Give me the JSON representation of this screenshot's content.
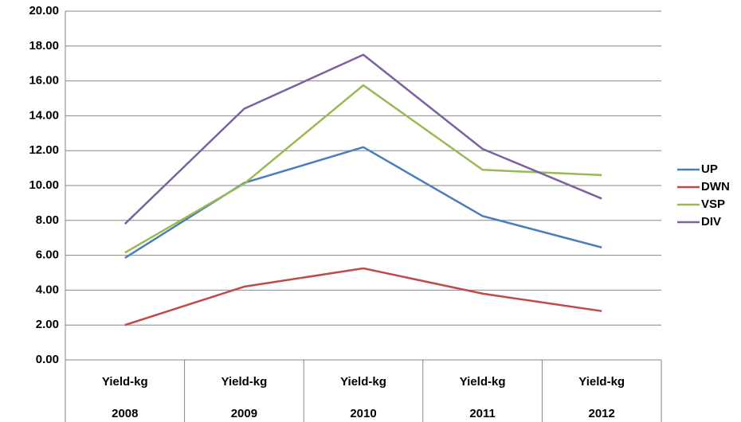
{
  "chart_data": {
    "type": "line",
    "categories": [
      [
        "Yield-kg",
        "2008"
      ],
      [
        "Yield-kg",
        "2009"
      ],
      [
        "Yield-kg",
        "2010"
      ],
      [
        "Yield-kg",
        "2011"
      ],
      [
        "Yield-kg",
        "2012"
      ]
    ],
    "series": [
      {
        "name": "UP",
        "color": "#4a7ebb",
        "values": [
          5.85,
          10.15,
          12.2,
          8.25,
          6.45
        ]
      },
      {
        "name": "DWN",
        "color": "#be4b48",
        "values": [
          2.0,
          4.2,
          5.25,
          3.8,
          2.8
        ]
      },
      {
        "name": "VSP",
        "color": "#98b954",
        "values": [
          6.15,
          10.1,
          15.75,
          10.9,
          10.6
        ]
      },
      {
        "name": "DIV",
        "color": "#7d60a0",
        "values": [
          7.8,
          14.4,
          17.5,
          12.1,
          9.25
        ]
      }
    ],
    "ylim": [
      0,
      20
    ],
    "yticks": [
      {
        "value": 0,
        "label": "0.00"
      },
      {
        "value": 2,
        "label": "2.00"
      },
      {
        "value": 4,
        "label": "4.00"
      },
      {
        "value": 6,
        "label": "6.00"
      },
      {
        "value": 8,
        "label": "8.00"
      },
      {
        "value": 10,
        "label": "10.00"
      },
      {
        "value": 12,
        "label": "12.00"
      },
      {
        "value": 14,
        "label": "14.00"
      },
      {
        "value": 16,
        "label": "16.00"
      },
      {
        "value": 18,
        "label": "18.00"
      },
      {
        "value": 20,
        "label": "20.00"
      }
    ],
    "grid": true,
    "legend": "right"
  }
}
